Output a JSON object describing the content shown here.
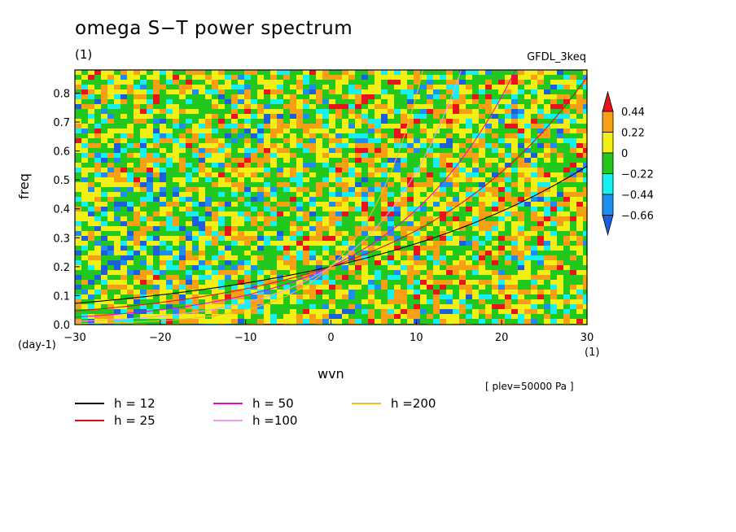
{
  "title": "omega S−T power spectrum",
  "subtitle_unit": "(1)",
  "model_label": "GFDL_3keq",
  "plev_label": "[ plev=50000 Pa ]",
  "chart_data": {
    "type": "heatmap",
    "xlabel": "wvn",
    "ylabel": "freq",
    "x_unit": "(1)",
    "y_unit": "(day-1)",
    "xlim": [
      -30,
      30
    ],
    "ylim": [
      0,
      0.88
    ],
    "xticks": [
      -30,
      -20,
      -10,
      0,
      10,
      20,
      30
    ],
    "xtick_labels": [
      "−30",
      "−20",
      "−10",
      "0",
      "10",
      "20",
      "30"
    ],
    "yticks": [
      0.0,
      0.1,
      0.2,
      0.3,
      0.4,
      0.5,
      0.6,
      0.7,
      0.8
    ],
    "ytick_labels": [
      "0.0",
      "0.1",
      "0.2",
      "0.3",
      "0.4",
      "0.5",
      "0.6",
      "0.7",
      "0.8"
    ],
    "colorbar": {
      "levels": [
        -0.66,
        -0.44,
        -0.22,
        0,
        0.22,
        0.44
      ],
      "labels": [
        "0.44",
        "0.22",
        "0",
        "−0.22",
        "−0.44",
        "−0.66"
      ],
      "colors": [
        "#e8141c",
        "#f7a016",
        "#f2ef14",
        "#23c81e",
        "#16f0f0",
        "#1f8cf0",
        "#1d5fd8"
      ]
    },
    "dispersion_curves": [
      {
        "name": "h = 12",
        "h": 12,
        "color": "#000000"
      },
      {
        "name": "h = 25",
        "h": 25,
        "color": "#e01010"
      },
      {
        "name": "h = 50",
        "h": 50,
        "color": "#e010c0"
      },
      {
        "name": "h =100",
        "h": 100,
        "color": "#e8a0e8"
      },
      {
        "name": "h =200",
        "h": 200,
        "color": "#f0c020"
      }
    ]
  },
  "legend": [
    {
      "label": "h = 12",
      "color": "#000000"
    },
    {
      "label": "h = 25",
      "color": "#e01010"
    },
    {
      "label": "h = 50",
      "color": "#e010c0"
    },
    {
      "label": "h =100",
      "color": "#e8a0e8"
    },
    {
      "label": "h =200",
      "color": "#f0c020"
    }
  ]
}
